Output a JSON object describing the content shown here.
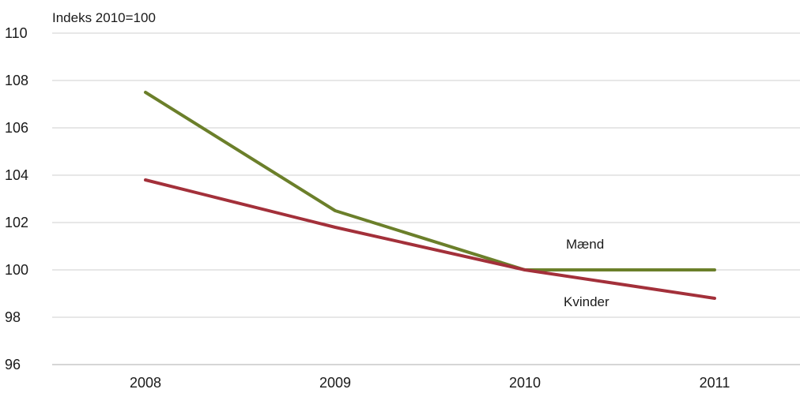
{
  "chart_data": {
    "type": "line",
    "unit_label": "Indeks 2010=100",
    "categories": [
      "2008",
      "2009",
      "2010",
      "2011"
    ],
    "ylim": [
      96,
      110
    ],
    "yticks": [
      "96",
      "98",
      "100",
      "102",
      "104",
      "106",
      "108",
      "110"
    ],
    "grid": true,
    "series": [
      {
        "name": "Mænd",
        "values": [
          107.5,
          102.5,
          100.0,
          100.0
        ],
        "color": "#6b7f2a"
      },
      {
        "name": "Kvinder",
        "values": [
          103.8,
          101.8,
          100.0,
          98.8
        ],
        "color": "#a3303a"
      }
    ]
  }
}
